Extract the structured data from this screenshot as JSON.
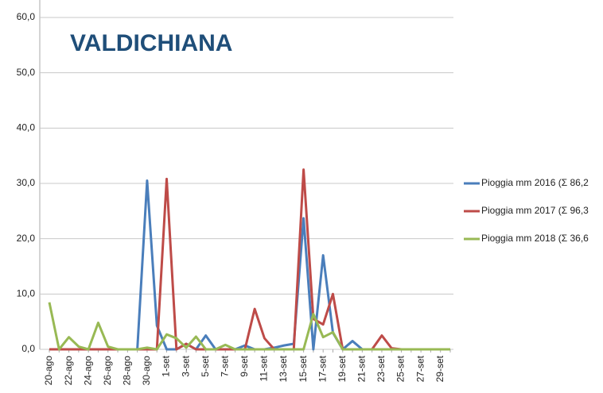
{
  "chart_data": {
    "type": "line",
    "title": "VALDICHIANA",
    "categories": [
      "20-ago",
      null,
      "22-ago",
      null,
      "24-ago",
      null,
      "26-ago",
      null,
      "28-ago",
      null,
      "30-ago",
      null,
      "1-set",
      null,
      "3-set",
      null,
      "5-set",
      null,
      "7-set",
      null,
      "9-set",
      null,
      "11-set",
      null,
      "13-set",
      null,
      "15-set",
      null,
      "17-set",
      null,
      "19-set",
      null,
      "21-set",
      null,
      "23-set",
      null,
      "25-set",
      null,
      "27-set",
      null,
      "29-set",
      null
    ],
    "series": [
      {
        "name": "Pioggia mm 2016 (Σ 86,2",
        "color": "#4a7ebb",
        "values": [
          0,
          0,
          0,
          0,
          0,
          0,
          0,
          0,
          0,
          0,
          30.5,
          4.3,
          0,
          0,
          1,
          0,
          2.5,
          0,
          0,
          0,
          0.7,
          0,
          0,
          0.3,
          0.7,
          1,
          23.7,
          0,
          17,
          3,
          0,
          1.5,
          0,
          0,
          0,
          0,
          0,
          0,
          0,
          0,
          0,
          0
        ]
      },
      {
        "name": "Pioggia mm 2017 (Σ 96,3",
        "color": "#be4b48",
        "values": [
          0,
          0,
          0,
          0,
          0,
          0,
          0,
          0,
          0,
          0,
          0,
          0,
          30.8,
          0,
          1,
          0,
          0,
          0,
          0,
          0,
          0,
          7.3,
          2,
          0,
          0,
          0,
          32.5,
          5.5,
          4.5,
          10,
          0,
          0,
          0,
          0,
          2.5,
          0.2,
          0,
          0,
          0,
          0,
          0,
          0
        ]
      },
      {
        "name": "Pioggia mm 2018 (Σ 36,6",
        "color": "#98b954",
        "values": [
          8.5,
          0,
          2.2,
          0.5,
          0,
          4.8,
          0.5,
          0,
          0,
          0,
          0.3,
          0,
          2.7,
          2,
          0.3,
          2.3,
          0,
          0,
          0.8,
          0,
          0,
          0,
          0,
          0,
          0,
          0,
          0,
          6.4,
          2.2,
          3.1,
          0,
          0,
          0,
          0,
          0,
          0,
          0,
          0,
          0,
          0,
          0,
          0
        ]
      }
    ],
    "ylim": [
      0,
      60
    ],
    "yticks": [
      {
        "value": 0,
        "label": "0,0"
      },
      {
        "value": 10,
        "label": "10,0"
      },
      {
        "value": 20,
        "label": "20,0"
      },
      {
        "value": 30,
        "label": "30,0"
      },
      {
        "value": 40,
        "label": "40,0"
      },
      {
        "value": 50,
        "label": "50,0"
      },
      {
        "value": 60,
        "label": "60,0"
      }
    ],
    "grid": true
  }
}
